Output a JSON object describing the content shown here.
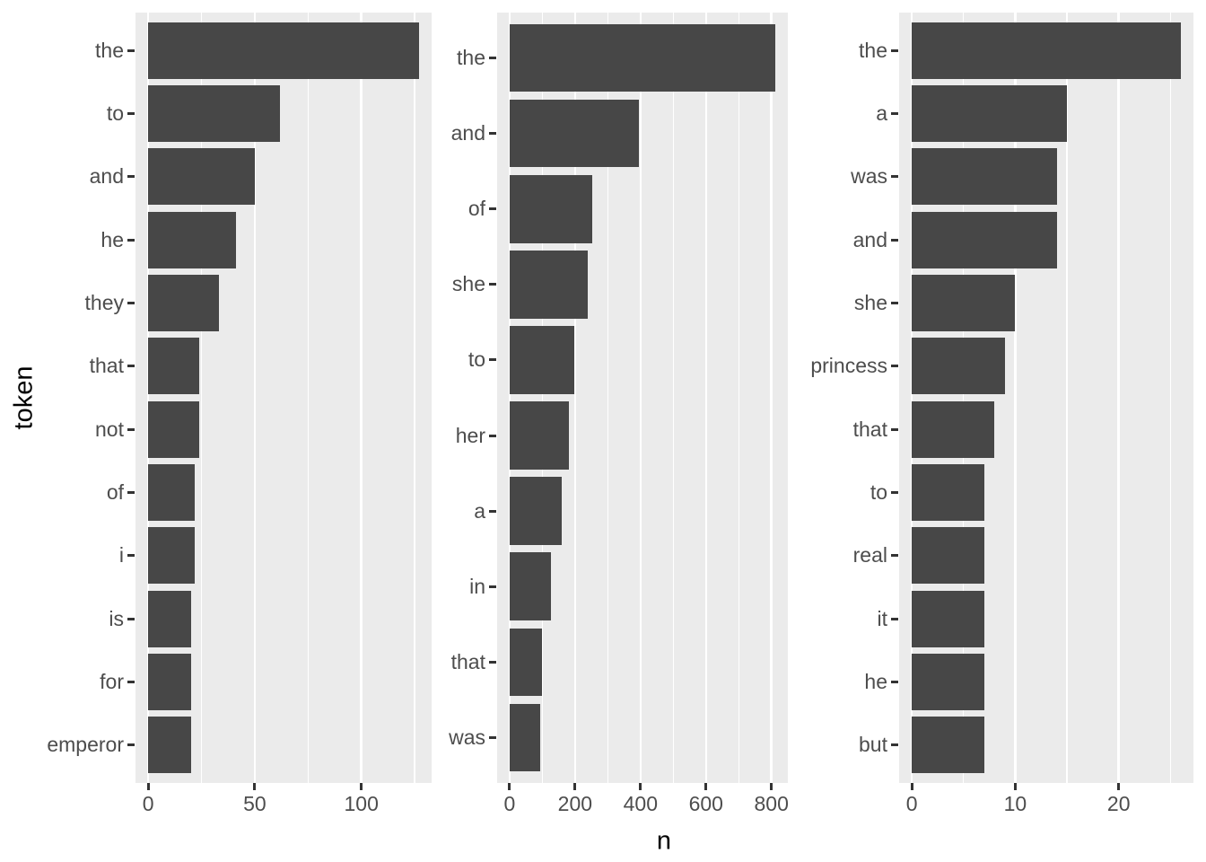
{
  "axes": {
    "x_title": "n",
    "y_title": "token"
  },
  "colors": {
    "background": "#FFFFFF",
    "panel_background": "#EBEBEB",
    "gridline": "#FFFFFF",
    "bar": "#474747",
    "tick_label": "#4D4D4D",
    "axis_title": "#000000",
    "tick_mark": "#333333"
  },
  "chart_data": [
    {
      "type": "bar",
      "orientation": "horizontal",
      "ylabel": "token",
      "xlabel": "n",
      "categories": [
        "the",
        "to",
        "and",
        "he",
        "they",
        "that",
        "not",
        "of",
        "i",
        "is",
        "for",
        "emperor"
      ],
      "values": [
        127,
        62,
        50,
        41,
        33,
        24,
        24,
        22,
        22,
        20,
        20,
        20
      ],
      "x_major_ticks": [
        0,
        50,
        100
      ],
      "x_minor_ticks": [
        25,
        75,
        125
      ],
      "xlim": [
        0,
        133
      ],
      "grid": true,
      "legend": "none"
    },
    {
      "type": "bar",
      "orientation": "horizontal",
      "ylabel": "token",
      "xlabel": "n",
      "categories": [
        "the",
        "and",
        "of",
        "she",
        "to",
        "her",
        "a",
        "in",
        "that",
        "was"
      ],
      "values": [
        812,
        396,
        252,
        239,
        199,
        181,
        158,
        126,
        98,
        93
      ],
      "x_major_ticks": [
        0,
        200,
        400,
        600,
        800
      ],
      "x_minor_ticks": [
        100,
        300,
        500,
        700
      ],
      "xlim": [
        0,
        853
      ],
      "grid": true,
      "legend": "none"
    },
    {
      "type": "bar",
      "orientation": "horizontal",
      "ylabel": "token",
      "xlabel": "n",
      "categories": [
        "the",
        "a",
        "was",
        "and",
        "she",
        "princess",
        "that",
        "to",
        "real",
        "it",
        "he",
        "but"
      ],
      "values": [
        26,
        15,
        14,
        14,
        10,
        9,
        8,
        7,
        7,
        7,
        7,
        7
      ],
      "x_major_ticks": [
        0,
        10,
        20
      ],
      "x_minor_ticks": [
        5,
        15,
        25
      ],
      "xlim": [
        0,
        27.3
      ],
      "grid": true,
      "legend": "none"
    }
  ]
}
